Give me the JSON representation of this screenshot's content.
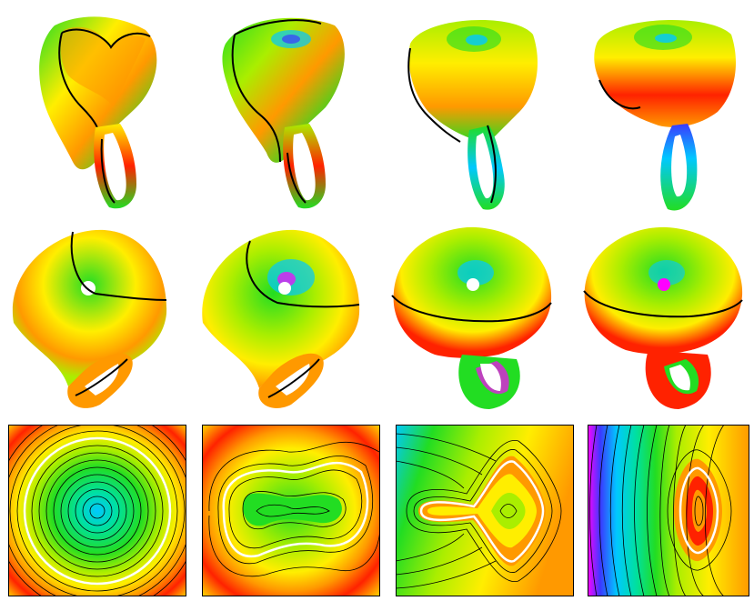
{
  "figure": {
    "rows": [
      {
        "name": "surface-side-view-row",
        "panels": [
          {
            "name": "surface-side-1"
          },
          {
            "name": "surface-side-2"
          },
          {
            "name": "surface-side-3"
          },
          {
            "name": "surface-side-4"
          }
        ]
      },
      {
        "name": "surface-top-view-row",
        "panels": [
          {
            "name": "surface-top-1"
          },
          {
            "name": "surface-top-2"
          },
          {
            "name": "surface-top-3"
          },
          {
            "name": "surface-top-4"
          }
        ]
      },
      {
        "name": "contour-map-row",
        "panels": [
          {
            "name": "contour-map-1"
          },
          {
            "name": "contour-map-2"
          },
          {
            "name": "contour-map-3"
          },
          {
            "name": "contour-map-4"
          }
        ]
      }
    ],
    "colors": {
      "colormap": [
        "#ff00ff",
        "#3a3aff",
        "#00c8ff",
        "#00e0a0",
        "#22dd22",
        "#aaee00",
        "#ffee00",
        "#ff9900",
        "#ff2200"
      ],
      "contour_line": "#000000",
      "highlight_line": "#ffffff"
    }
  }
}
